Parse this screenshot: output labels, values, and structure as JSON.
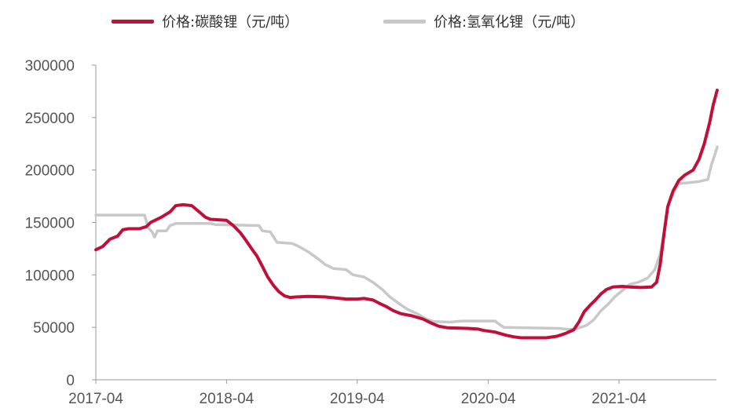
{
  "chart_data": {
    "type": "line",
    "title": "",
    "xlabel": "",
    "ylabel": "",
    "x_ticks": [
      "2017-04",
      "2018-04",
      "2019-04",
      "2020-04",
      "2021-04"
    ],
    "y_ticks": [
      "0",
      "50000",
      "100000",
      "150000",
      "200000",
      "250000",
      "300000"
    ],
    "xlim": [
      "2017-04-01",
      "2021-12-31"
    ],
    "ylim": [
      0,
      300000
    ],
    "grid": false,
    "legend": "top",
    "series": [
      {
        "name": "价格:碳酸锂（元/吨）",
        "color": "#C0103A",
        "points": [
          [
            "2017-04-01",
            124000
          ],
          [
            "2017-04-20",
            127000
          ],
          [
            "2017-05-10",
            134000
          ],
          [
            "2017-06-01",
            137000
          ],
          [
            "2017-06-15",
            143000
          ],
          [
            "2017-07-01",
            144000
          ],
          [
            "2017-08-01",
            144000
          ],
          [
            "2017-08-20",
            146000
          ],
          [
            "2017-09-01",
            150000
          ],
          [
            "2017-10-01",
            155000
          ],
          [
            "2017-10-25",
            160000
          ],
          [
            "2017-11-10",
            166000
          ],
          [
            "2017-12-01",
            167000
          ],
          [
            "2017-12-25",
            166000
          ],
          [
            "2018-01-15",
            160000
          ],
          [
            "2018-02-01",
            155000
          ],
          [
            "2018-02-15",
            153000
          ],
          [
            "2018-04-01",
            152000
          ],
          [
            "2018-04-20",
            147000
          ],
          [
            "2018-05-10",
            140000
          ],
          [
            "2018-05-25",
            133000
          ],
          [
            "2018-06-10",
            125000
          ],
          [
            "2018-06-25",
            118000
          ],
          [
            "2018-07-10",
            108000
          ],
          [
            "2018-07-25",
            98000
          ],
          [
            "2018-08-10",
            90000
          ],
          [
            "2018-08-25",
            84000
          ],
          [
            "2018-09-10",
            80000
          ],
          [
            "2018-09-25",
            78500
          ],
          [
            "2018-10-15",
            79000
          ],
          [
            "2018-11-15",
            79500
          ],
          [
            "2018-12-31",
            79000
          ],
          [
            "2019-01-31",
            78000
          ],
          [
            "2019-03-01",
            77000
          ],
          [
            "2019-04-01",
            77000
          ],
          [
            "2019-04-20",
            77500
          ],
          [
            "2019-05-15",
            76000
          ],
          [
            "2019-06-01",
            73000
          ],
          [
            "2019-06-20",
            70000
          ],
          [
            "2019-07-10",
            66000
          ],
          [
            "2019-08-01",
            63000
          ],
          [
            "2019-09-01",
            61000
          ],
          [
            "2019-10-01",
            58000
          ],
          [
            "2019-10-25",
            54000
          ],
          [
            "2019-11-15",
            51000
          ],
          [
            "2019-12-10",
            49500
          ],
          [
            "2020-02-01",
            49000
          ],
          [
            "2020-03-01",
            48500
          ],
          [
            "2020-03-20",
            47000
          ],
          [
            "2020-04-20",
            45500
          ],
          [
            "2020-05-20",
            42500
          ],
          [
            "2020-06-10",
            41000
          ],
          [
            "2020-07-01",
            40000
          ],
          [
            "2020-09-10",
            40000
          ],
          [
            "2020-10-10",
            41500
          ],
          [
            "2020-11-01",
            44000
          ],
          [
            "2020-11-25",
            47500
          ],
          [
            "2020-12-10",
            55000
          ],
          [
            "2020-12-25",
            65000
          ],
          [
            "2021-01-10",
            71000
          ],
          [
            "2021-01-25",
            76000
          ],
          [
            "2021-02-10",
            82000
          ],
          [
            "2021-02-25",
            86000
          ],
          [
            "2021-03-15",
            88500
          ],
          [
            "2021-04-10",
            89000
          ],
          [
            "2021-05-01",
            88500
          ],
          [
            "2021-06-01",
            88000
          ],
          [
            "2021-07-01",
            88500
          ],
          [
            "2021-07-15",
            93000
          ],
          [
            "2021-07-25",
            110000
          ],
          [
            "2021-08-05",
            140000
          ],
          [
            "2021-08-15",
            165000
          ],
          [
            "2021-08-30",
            180000
          ],
          [
            "2021-09-15",
            190000
          ],
          [
            "2021-10-01",
            195000
          ],
          [
            "2021-10-25",
            200000
          ],
          [
            "2021-11-10",
            210000
          ],
          [
            "2021-11-25",
            225000
          ],
          [
            "2021-12-10",
            245000
          ],
          [
            "2021-12-20",
            262000
          ],
          [
            "2021-12-31",
            276000
          ]
        ]
      },
      {
        "name": "价格:氢氧化锂（元/吨）",
        "color": "#C8C8C8",
        "points": [
          [
            "2017-04-01",
            157000
          ],
          [
            "2017-08-15",
            157000
          ],
          [
            "2017-08-25",
            145000
          ],
          [
            "2017-09-05",
            141000
          ],
          [
            "2017-09-12",
            136000
          ],
          [
            "2017-09-20",
            142000
          ],
          [
            "2017-10-15",
            142000
          ],
          [
            "2017-10-25",
            147000
          ],
          [
            "2017-11-10",
            149000
          ],
          [
            "2018-02-15",
            149000
          ],
          [
            "2018-03-01",
            148000
          ],
          [
            "2018-07-01",
            147000
          ],
          [
            "2018-07-10",
            142000
          ],
          [
            "2018-08-01",
            141000
          ],
          [
            "2018-08-20",
            131000
          ],
          [
            "2018-10-01",
            130000
          ],
          [
            "2018-10-20",
            127000
          ],
          [
            "2018-11-15",
            122000
          ],
          [
            "2018-12-10",
            116000
          ],
          [
            "2019-01-01",
            110000
          ],
          [
            "2019-01-25",
            106000
          ],
          [
            "2019-03-01",
            105000
          ],
          [
            "2019-03-20",
            100000
          ],
          [
            "2019-04-20",
            98000
          ],
          [
            "2019-05-15",
            93000
          ],
          [
            "2019-06-10",
            86000
          ],
          [
            "2019-07-01",
            79000
          ],
          [
            "2019-07-25",
            73000
          ],
          [
            "2019-08-20",
            67000
          ],
          [
            "2019-09-15",
            63000
          ],
          [
            "2019-10-10",
            58000
          ],
          [
            "2019-11-01",
            55500
          ],
          [
            "2019-12-15",
            55000
          ],
          [
            "2020-01-20",
            56000
          ],
          [
            "2020-04-20",
            56000
          ],
          [
            "2020-05-01",
            53000
          ],
          [
            "2020-05-15",
            50000
          ],
          [
            "2020-10-15",
            49000
          ],
          [
            "2020-11-10",
            48000
          ],
          [
            "2020-12-01",
            48500
          ],
          [
            "2021-01-01",
            52000
          ],
          [
            "2021-01-20",
            57000
          ],
          [
            "2021-02-10",
            66000
          ],
          [
            "2021-03-01",
            72000
          ],
          [
            "2021-03-20",
            79000
          ],
          [
            "2021-04-10",
            85000
          ],
          [
            "2021-05-01",
            91000
          ],
          [
            "2021-05-25",
            93000
          ],
          [
            "2021-06-20",
            97000
          ],
          [
            "2021-07-10",
            105000
          ],
          [
            "2021-07-25",
            120000
          ],
          [
            "2021-08-05",
            140000
          ],
          [
            "2021-08-15",
            165000
          ],
          [
            "2021-08-30",
            178000
          ],
          [
            "2021-09-15",
            187000
          ],
          [
            "2021-10-15",
            188000
          ],
          [
            "2021-11-10",
            189000
          ],
          [
            "2021-12-05",
            191000
          ],
          [
            "2021-12-15",
            205000
          ],
          [
            "2021-12-25",
            215000
          ],
          [
            "2021-12-31",
            222000
          ]
        ]
      }
    ]
  }
}
